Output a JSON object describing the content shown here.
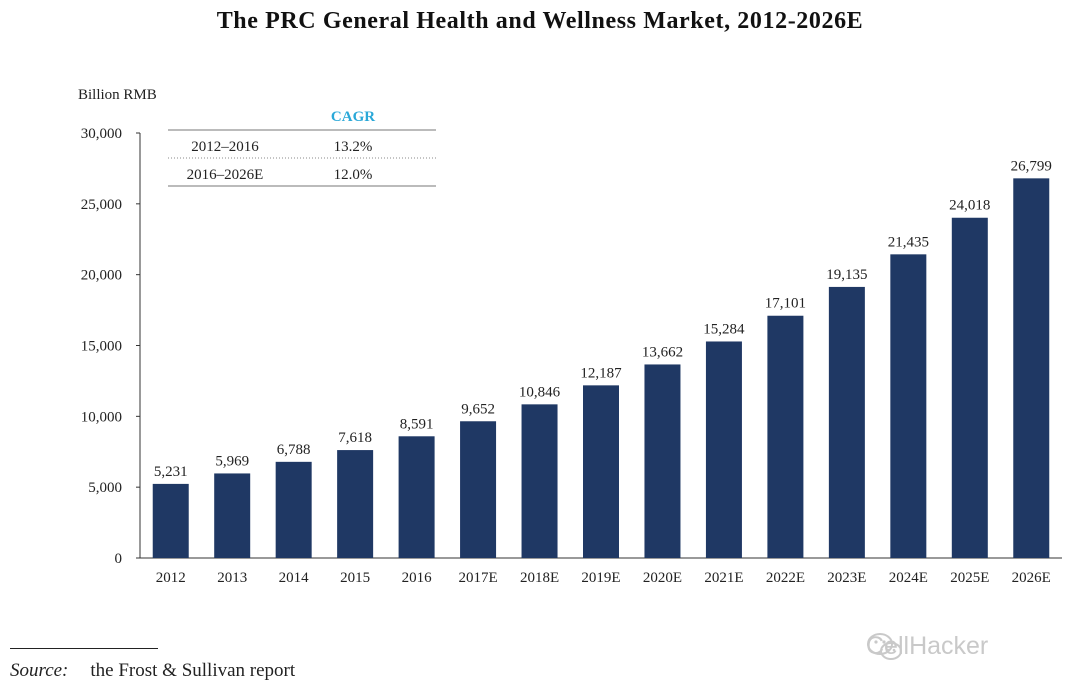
{
  "chart_data": {
    "type": "bar",
    "title": "The PRC General Health and Wellness Market, 2012-2026E",
    "ylabel": "Billion RMB",
    "xlabel": "",
    "categories": [
      "2012",
      "2013",
      "2014",
      "2015",
      "2016",
      "2017E",
      "2018E",
      "2019E",
      "2020E",
      "2021E",
      "2022E",
      "2023E",
      "2024E",
      "2025E",
      "2026E"
    ],
    "values": [
      5231,
      5969,
      6788,
      7618,
      8591,
      9652,
      10846,
      12187,
      13662,
      15284,
      17101,
      19135,
      21435,
      24018,
      26799
    ],
    "value_labels": [
      "5,231",
      "5,969",
      "6,788",
      "7,618",
      "8,591",
      "9,652",
      "10,846",
      "12,187",
      "13,662",
      "15,284",
      "17,101",
      "19,135",
      "21,435",
      "24,018",
      "26,799"
    ],
    "ylim": [
      0,
      30000
    ],
    "yticks": [
      0,
      5000,
      10000,
      15000,
      20000,
      25000,
      30000
    ],
    "ytick_labels": [
      "0",
      "5,000",
      "10,000",
      "15,000",
      "20,000",
      "25,000",
      "30,000"
    ],
    "bar_color": "#1f3864",
    "grid": false,
    "legend": "none"
  },
  "cagr_table": {
    "header": "CAGR",
    "header_color": "#2aa8d8",
    "rows": [
      {
        "period": "2012–2016",
        "rate": "13.2%"
      },
      {
        "period": "2016–2026E",
        "rate": "12.0%"
      }
    ]
  },
  "source": {
    "label": "Source:",
    "text": "the Frost & Sullivan report"
  },
  "watermark": {
    "text": "CellHacker",
    "icon": "wechat-icon"
  }
}
